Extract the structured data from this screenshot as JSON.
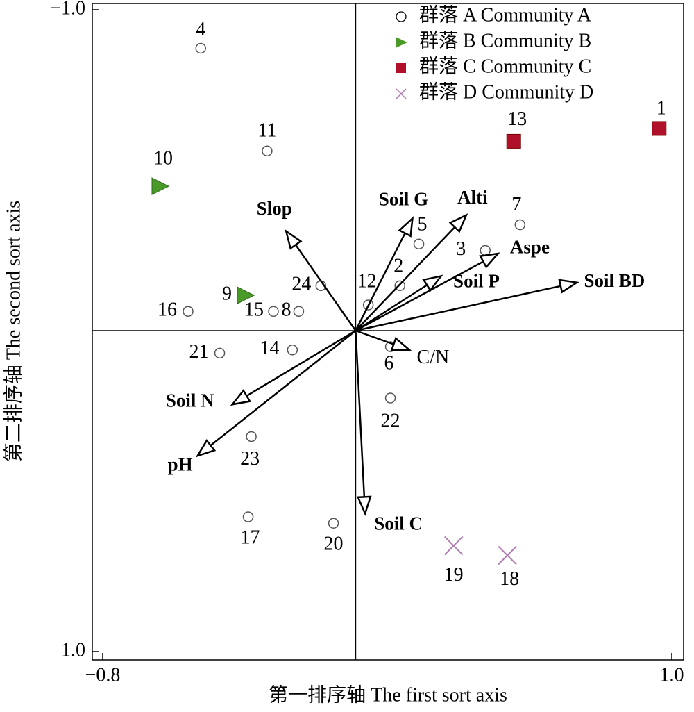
{
  "chart_data": {
    "type": "scatter",
    "xlabel": "第一排序轴 The first sort axis",
    "ylabel": "第二排序轴 The second sort axis",
    "xlim": [
      -0.8,
      1.0
    ],
    "ylim": [
      -1.0,
      1.0
    ],
    "y_inverted": true,
    "xticks": [
      {
        "value": -0.8,
        "label": "−0.8"
      },
      {
        "value": 1.0,
        "label": "1.0"
      }
    ],
    "yticks": [
      {
        "value": -1.0,
        "label": "−1.0"
      },
      {
        "value": 1.0,
        "label": "1.0"
      }
    ],
    "legend": "upper right",
    "series": [
      {
        "name": "群落 A Community A",
        "marker": "circle",
        "color": "#555555",
        "labels": [
          "4",
          "11",
          "7",
          "5",
          "3",
          "2",
          "12",
          "24",
          "16",
          "15",
          "8",
          "21",
          "14",
          "6",
          "22",
          "23",
          "17",
          "20"
        ],
        "x": [
          -0.49,
          -0.28,
          0.52,
          0.2,
          0.41,
          0.14,
          0.04,
          -0.11,
          -0.53,
          -0.26,
          -0.18,
          -0.43,
          -0.2,
          0.11,
          0.11,
          -0.33,
          -0.34,
          -0.07
        ],
        "values": [
          -0.88,
          -0.56,
          -0.33,
          -0.27,
          -0.25,
          -0.14,
          -0.08,
          -0.14,
          -0.06,
          -0.06,
          -0.06,
          0.07,
          0.06,
          0.05,
          0.21,
          0.33,
          0.58,
          0.6
        ]
      },
      {
        "name": "群落 B Community B",
        "marker": "triangle",
        "color": "#4a9a2a",
        "labels": [
          "10",
          "9"
        ],
        "x": [
          -0.62,
          -0.35
        ],
        "values": [
          -0.45,
          -0.11
        ]
      },
      {
        "name": "群落 C Community C",
        "marker": "square",
        "color": "#b0102a",
        "labels": [
          "13",
          "1"
        ],
        "x": [
          0.5,
          0.96
        ],
        "values": [
          -0.59,
          -0.63
        ]
      },
      {
        "name": "群落 D Community D",
        "marker": "cross",
        "color": "#b07ab0",
        "labels": [
          "19",
          "18"
        ],
        "x": [
          0.31,
          0.48
        ],
        "values": [
          0.67,
          0.7
        ]
      }
    ],
    "vectors": {
      "names": [
        "Slop",
        "Soil G",
        "Alti",
        "Aspe",
        "Soil P",
        "Soil BD",
        "C/N",
        "Soil C",
        "Soil N",
        "pH"
      ],
      "x": [
        -0.22,
        0.18,
        0.35,
        0.45,
        0.27,
        0.7,
        0.17,
        0.03,
        -0.39,
        -0.5
      ],
      "y": [
        -0.31,
        -0.35,
        -0.36,
        -0.24,
        -0.17,
        -0.15,
        0.06,
        0.57,
        0.23,
        0.39
      ]
    }
  }
}
